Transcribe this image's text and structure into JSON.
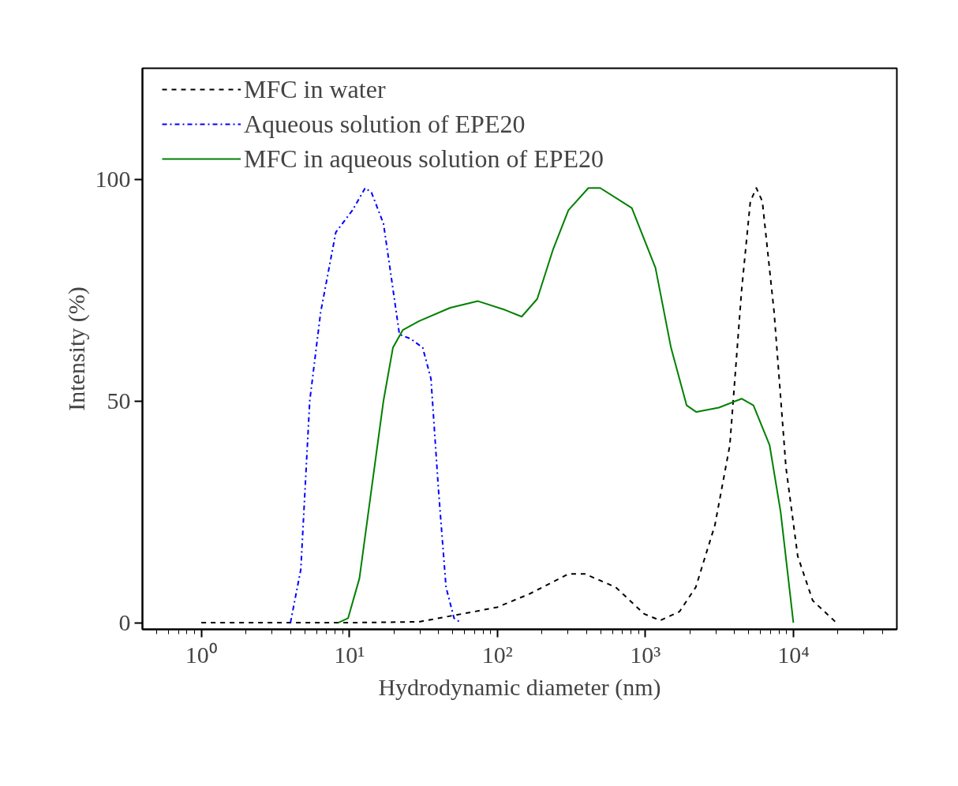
{
  "chart_data": {
    "type": "line",
    "xlabel": "Hydrodynamic diameter (nm)",
    "ylabel": "Intensity (%)",
    "log": "x",
    "xlim": [
      0.4,
      50000
    ],
    "ylim": [
      -1.5,
      125
    ],
    "xticks": [
      {
        "value": 1,
        "label": "10⁰"
      },
      {
        "value": 10,
        "label": "10¹"
      },
      {
        "value": 100,
        "label": "10²"
      },
      {
        "value": 1000,
        "label": "10³"
      },
      {
        "value": 10000,
        "label": "10⁴"
      },
      {
        "value": 0.5,
        "label": null
      },
      {
        "value": 0.6,
        "label": null
      },
      {
        "value": 0.7,
        "label": null
      },
      {
        "value": 0.8,
        "label": null
      },
      {
        "value": 0.9,
        "label": null
      },
      {
        "value": 2,
        "label": null
      },
      {
        "value": 3,
        "label": null
      },
      {
        "value": 4,
        "label": null
      },
      {
        "value": 5,
        "label": null
      },
      {
        "value": 6,
        "label": null
      },
      {
        "value": 7,
        "label": null
      },
      {
        "value": 8,
        "label": null
      },
      {
        "value": 9,
        "label": null
      },
      {
        "value": 20,
        "label": null
      },
      {
        "value": 30,
        "label": null
      },
      {
        "value": 40,
        "label": null
      },
      {
        "value": 50,
        "label": null
      },
      {
        "value": 60,
        "label": null
      },
      {
        "value": 70,
        "label": null
      },
      {
        "value": 80,
        "label": null
      },
      {
        "value": 90,
        "label": null
      },
      {
        "value": 200,
        "label": null
      },
      {
        "value": 300,
        "label": null
      },
      {
        "value": 400,
        "label": null
      },
      {
        "value": 500,
        "label": null
      },
      {
        "value": 600,
        "label": null
      },
      {
        "value": 700,
        "label": null
      },
      {
        "value": 800,
        "label": null
      },
      {
        "value": 900,
        "label": null
      },
      {
        "value": 2000,
        "label": null
      },
      {
        "value": 3000,
        "label": null
      },
      {
        "value": 4000,
        "label": null
      },
      {
        "value": 5000,
        "label": null
      },
      {
        "value": 6000,
        "label": null
      },
      {
        "value": 7000,
        "label": null
      },
      {
        "value": 8000,
        "label": null
      },
      {
        "value": 9000,
        "label": null
      },
      {
        "value": 20000,
        "label": null
      },
      {
        "value": 30000,
        "label": null
      },
      {
        "value": 40000,
        "label": null
      }
    ],
    "yticks": [
      0,
      50,
      100
    ],
    "grid": false,
    "legend": "top left",
    "series": [
      {
        "name": "MFC in water",
        "color": "#000000",
        "line_style": "dashed",
        "x": [
          1,
          10,
          29.6,
          48,
          70,
          100,
          165,
          302,
          390,
          630,
          980,
          1260,
          1700,
          2190,
          2950,
          3720,
          4470,
          5120,
          5620,
          6170,
          7410,
          8910,
          10700,
          13500,
          19500
        ],
        "values": [
          0,
          0,
          0.2,
          1.5,
          2.5,
          3.5,
          6.5,
          11,
          11,
          8,
          2,
          0.5,
          2.5,
          8,
          22,
          40,
          75,
          95,
          98,
          95,
          70,
          35,
          15,
          5,
          0
        ]
      },
      {
        "name": "Aqueous solution of EPE20",
        "color": "#0000ff",
        "line_style": "dashdot",
        "x": [
          4.0,
          4.7,
          5.4,
          6.4,
          8.1,
          10.5,
          12.8,
          14.1,
          17,
          18.8,
          21.8,
          26,
          31.3,
          35.6,
          40,
          45,
          51,
          56.8
        ],
        "values": [
          0,
          12,
          50,
          70,
          88,
          93,
          98,
          97,
          90,
          80,
          65,
          64,
          62,
          55,
          30,
          8,
          1,
          0
        ]
      },
      {
        "name": "MFC in aqueous solution of EPE20",
        "color": "#008000",
        "line_style": "solid",
        "x": [
          8.4,
          9.8,
          11.7,
          14.1,
          17,
          19.7,
          23,
          29.6,
          48,
          74,
          113,
          146,
          186,
          237,
          302,
          412,
          496,
          810,
          1170,
          1490,
          1900,
          2210,
          3140,
          4470,
          5370,
          6910,
          8200,
          10000
        ],
        "values": [
          0,
          1,
          10,
          30,
          50,
          62,
          66,
          68,
          71,
          72.5,
          70.5,
          69,
          73,
          84,
          93,
          98,
          98,
          93.5,
          80,
          62,
          49,
          47.5,
          48.5,
          50.5,
          49,
          40,
          25,
          0
        ]
      }
    ]
  }
}
